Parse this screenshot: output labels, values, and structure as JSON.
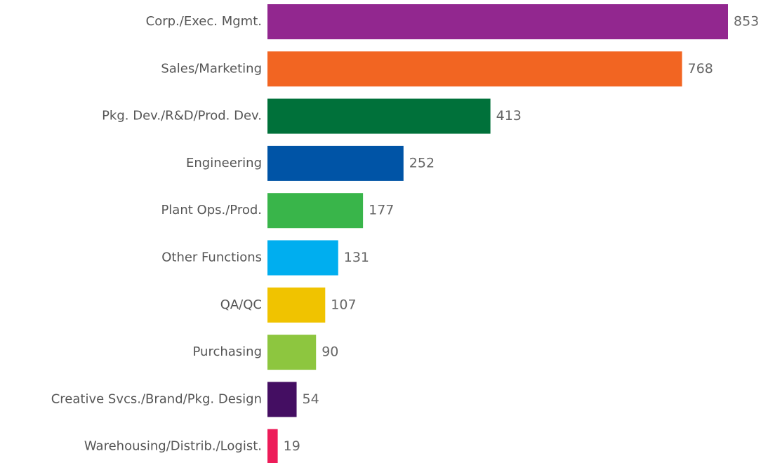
{
  "chart_data": {
    "type": "barh",
    "categories": [
      "Corp./Exec. Mgmt.",
      "Sales/Marketing",
      "Pkg. Dev./R&D/Prod. Dev.",
      "Engineering",
      "Plant Ops./Prod.",
      "Other Functions",
      "QA/QC",
      "Purchasing",
      "Creative Svcs./Brand/Pkg. Design",
      "Warehousing/Distrib./Logist."
    ],
    "values": [
      853,
      768,
      413,
      252,
      177,
      131,
      107,
      90,
      54,
      19
    ],
    "colors": [
      "#92278f",
      "#f26522",
      "#00713a",
      "#0054a6",
      "#39b54a",
      "#00aeef",
      "#f0c300",
      "#8dc63f",
      "#440e62",
      "#ed1c59"
    ]
  }
}
